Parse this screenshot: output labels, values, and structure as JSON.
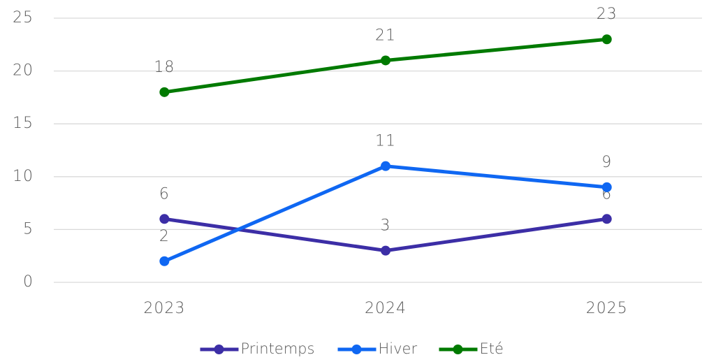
{
  "chart_data": {
    "type": "line",
    "categories": [
      "2023",
      "2024",
      "2025"
    ],
    "series": [
      {
        "name": "Printemps",
        "color": "#3c2ea6",
        "values": [
          6,
          3,
          6
        ]
      },
      {
        "name": "Hiver",
        "color": "#0f67f2",
        "values": [
          2,
          11,
          9
        ]
      },
      {
        "name": "Eté",
        "color": "#007a00",
        "values": [
          18,
          21,
          23
        ]
      }
    ],
    "ylim": [
      0,
      25
    ],
    "yticks": [
      0,
      5,
      10,
      15,
      20,
      25
    ],
    "grid": true,
    "legend": "bottom"
  }
}
